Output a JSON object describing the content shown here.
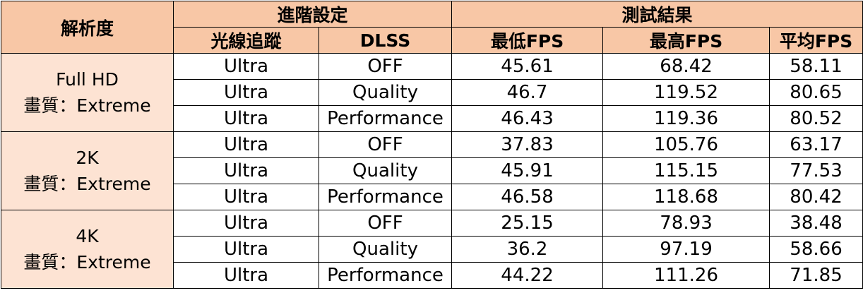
{
  "headers": {
    "resolution": "解析度",
    "advanced_settings": "進階設定",
    "test_results": "測試結果",
    "ray_tracing": "光線追蹤",
    "dlss": "DLSS",
    "min_fps": "最低FPS",
    "max_fps": "最高FPS",
    "avg_fps": "平均FPS"
  },
  "groups": [
    {
      "res_line1": "Full HD",
      "res_line2": "畫質：Extreme",
      "rows": [
        {
          "rt": "Ultra",
          "dlss": "OFF",
          "min": "45.61",
          "max": "68.42",
          "avg": "58.11"
        },
        {
          "rt": "Ultra",
          "dlss": "Quality",
          "min": "46.7",
          "max": "119.52",
          "avg": "80.65"
        },
        {
          "rt": "Ultra",
          "dlss": "Performance",
          "min": "46.43",
          "max": "119.36",
          "avg": "80.52"
        }
      ]
    },
    {
      "res_line1": "2K",
      "res_line2": "畫質：Extreme",
      "rows": [
        {
          "rt": "Ultra",
          "dlss": "OFF",
          "min": "37.83",
          "max": "105.76",
          "avg": "63.17"
        },
        {
          "rt": "Ultra",
          "dlss": "Quality",
          "min": "45.91",
          "max": "115.15",
          "avg": "77.53"
        },
        {
          "rt": "Ultra",
          "dlss": "Performance",
          "min": "46.58",
          "max": "118.68",
          "avg": "80.42"
        }
      ]
    },
    {
      "res_line1": "4K",
      "res_line2": "畫質：Extreme",
      "rows": [
        {
          "rt": "Ultra",
          "dlss": "OFF",
          "min": "25.15",
          "max": "78.93",
          "avg": "38.48"
        },
        {
          "rt": "Ultra",
          "dlss": "Quality",
          "min": "36.2",
          "max": "97.19",
          "avg": "58.66"
        },
        {
          "rt": "Ultra",
          "dlss": "Performance",
          "min": "44.22",
          "max": "111.26",
          "avg": "71.85"
        }
      ]
    }
  ],
  "colors": {
    "header_bg": "#f8c7a6",
    "resolution_bg": "#fde3d3",
    "border": "#000000"
  }
}
